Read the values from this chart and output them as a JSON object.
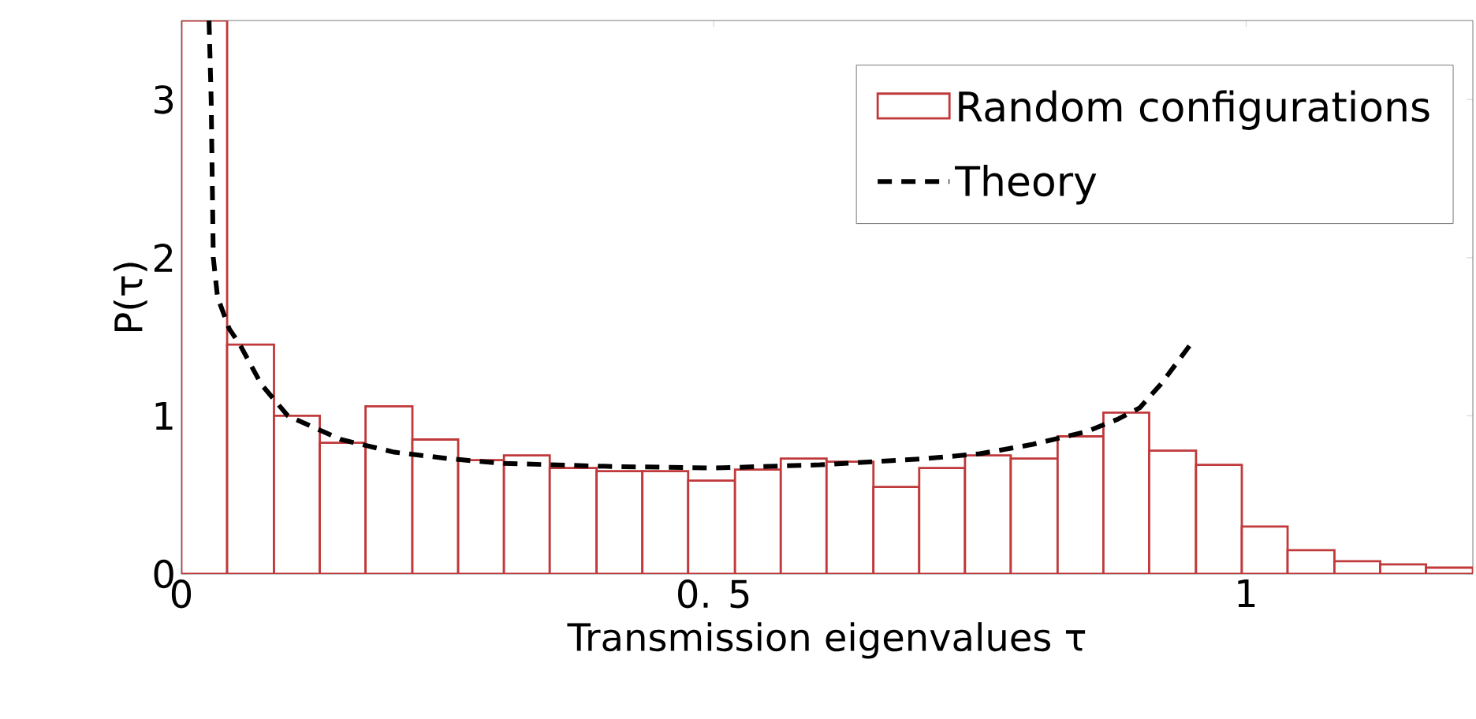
{
  "chart_data": {
    "type": "histogram",
    "xlabel": "Transmission eigenvalues τ",
    "ylabel": "P(τ)",
    "xlim": [
      0,
      1.213
    ],
    "ylim": [
      0,
      3.5
    ],
    "xticks": [
      0,
      {
        "value": 0.5,
        "label": "0. 5"
      },
      1
    ],
    "yticks": [
      0,
      1,
      2,
      3
    ],
    "legend": "top right",
    "series": [
      {
        "name": "Random configurations",
        "type": "histogram",
        "color": "#c0393b",
        "bins": [
          0,
          0.043,
          0.087,
          0.13,
          0.173,
          0.217,
          0.26,
          0.303,
          0.346,
          0.39,
          0.433,
          0.476,
          0.52,
          0.563,
          0.606,
          0.65,
          0.693,
          0.736,
          0.779,
          0.823,
          0.866,
          0.909,
          0.953,
          0.996,
          1.039,
          1.083,
          1.126,
          1.169,
          1.213
        ],
        "values": [
          3.5,
          1.45,
          1.0,
          0.83,
          1.06,
          0.85,
          0.72,
          0.75,
          0.67,
          0.65,
          0.65,
          0.59,
          0.66,
          0.73,
          0.71,
          0.55,
          0.67,
          0.75,
          0.73,
          0.87,
          1.02,
          0.78,
          0.69,
          0.3,
          0.15,
          0.08,
          0.06,
          0.04
        ]
      },
      {
        "name": "Theory",
        "type": "line",
        "color": "#000000",
        "line_style": "dashed",
        "x": [
          0.026,
          0.028,
          0.03,
          0.034,
          0.045,
          0.055,
          0.075,
          0.1,
          0.15,
          0.2,
          0.25,
          0.3,
          0.4,
          0.5,
          0.6,
          0.7,
          0.75,
          0.8,
          0.85,
          0.88,
          0.9,
          0.92,
          0.951
        ],
        "values": [
          3.5,
          3.0,
          2.0,
          1.75,
          1.55,
          1.45,
          1.2,
          1.0,
          0.85,
          0.77,
          0.73,
          0.7,
          0.68,
          0.67,
          0.69,
          0.73,
          0.76,
          0.82,
          0.9,
          0.98,
          1.05,
          1.2,
          1.48
        ]
      }
    ]
  }
}
